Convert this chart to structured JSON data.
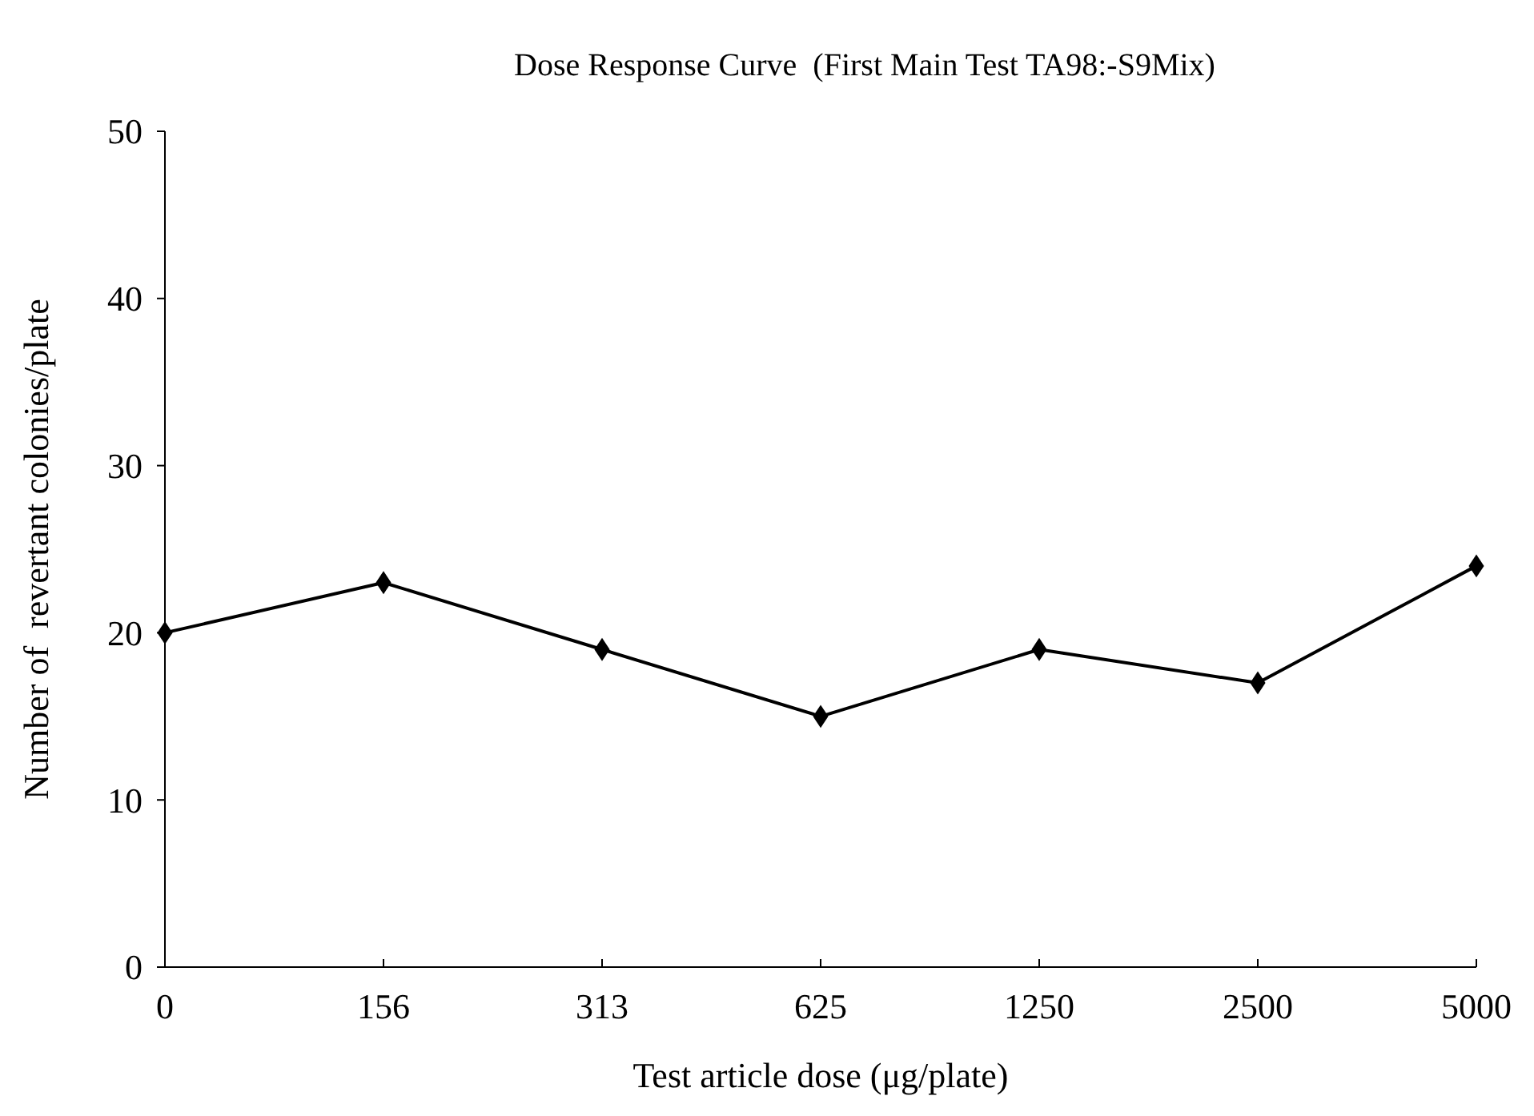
{
  "chart_data": {
    "type": "line",
    "title": "Dose Response Curve  (First Main Test TA98:-S9Mix)",
    "xlabel": "Test article dose (μg/plate)",
    "ylabel": "Number of  revertant colonies/plate",
    "categories": [
      "0",
      "156",
      "313",
      "625",
      "1250",
      "2500",
      "5000"
    ],
    "series": [
      {
        "color": "#000000",
        "values": [
          20,
          23,
          19,
          15,
          19,
          17,
          24
        ]
      }
    ],
    "ylim": [
      0,
      50
    ],
    "yticks": [
      0,
      10,
      20,
      30,
      40,
      50
    ],
    "grid": false,
    "marker": "diamond",
    "line_style": "solid"
  }
}
